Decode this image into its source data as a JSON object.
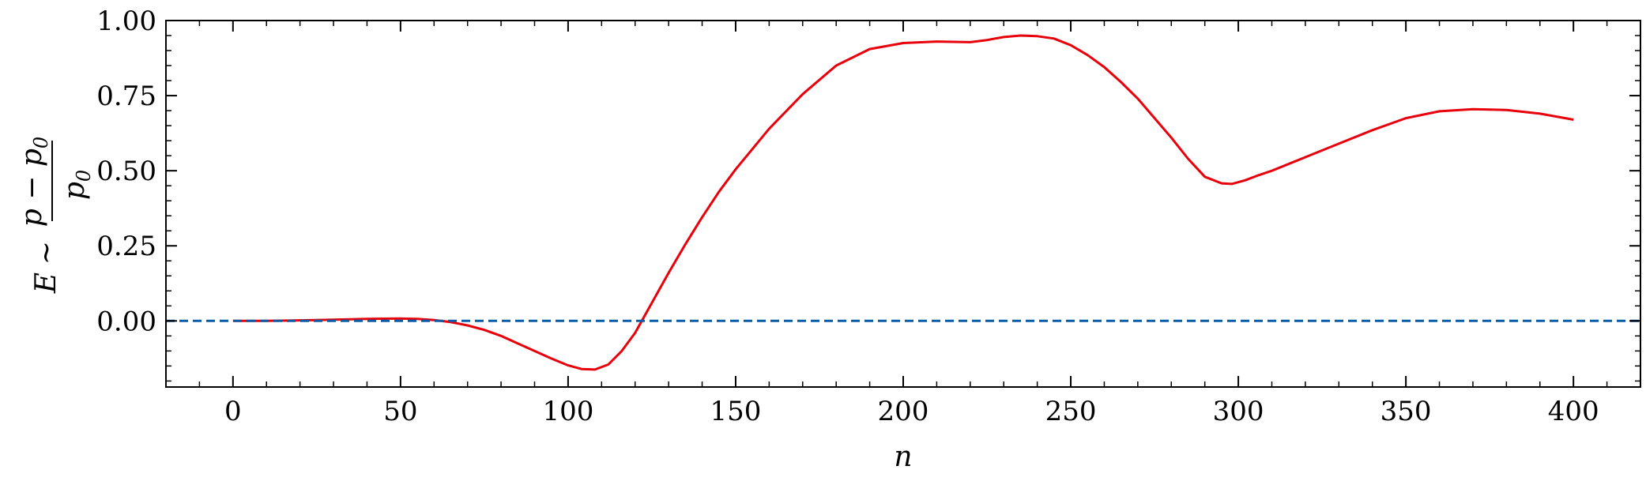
{
  "chart_data": {
    "type": "line",
    "title": "",
    "xlabel": "n",
    "ylabel": {
      "prefix": "E",
      "relation": "∼",
      "numerator": "p − p",
      "numerator_sub": "0",
      "denominator": "p",
      "denominator_sub": "0"
    },
    "xlim": [
      -20,
      420
    ],
    "ylim": [
      -0.22,
      1.0
    ],
    "xticks": [
      0,
      50,
      100,
      150,
      200,
      250,
      300,
      350,
      400
    ],
    "xtick_labels": [
      "0",
      "50",
      "100",
      "150",
      "200",
      "250",
      "300",
      "350",
      "400"
    ],
    "yticks": [
      0.0,
      0.25,
      0.5,
      0.75,
      1.0
    ],
    "ytick_labels": [
      "0.00",
      "0.25",
      "0.50",
      "0.75",
      "1.00"
    ],
    "grid": false,
    "series": [
      {
        "color": "#e8000b",
        "style": "solid",
        "x": [
          0,
          10,
          20,
          30,
          40,
          50,
          55,
          60,
          65,
          70,
          75,
          80,
          85,
          90,
          95,
          100,
          104,
          108,
          112,
          116,
          120,
          125,
          130,
          135,
          140,
          145,
          150,
          160,
          170,
          180,
          190,
          200,
          210,
          220,
          225,
          230,
          235,
          240,
          245,
          250,
          255,
          260,
          265,
          270,
          275,
          280,
          285,
          290,
          295,
          298,
          302,
          306,
          310,
          320,
          330,
          340,
          350,
          360,
          370,
          380,
          390,
          400
        ],
        "y": [
          0.0,
          0.0,
          0.002,
          0.004,
          0.007,
          0.008,
          0.007,
          0.003,
          -0.004,
          -0.015,
          -0.03,
          -0.05,
          -0.075,
          -0.1,
          -0.125,
          -0.148,
          -0.16,
          -0.162,
          -0.145,
          -0.1,
          -0.04,
          0.06,
          0.16,
          0.255,
          0.345,
          0.43,
          0.505,
          0.64,
          0.755,
          0.85,
          0.905,
          0.925,
          0.93,
          0.928,
          0.935,
          0.945,
          0.95,
          0.948,
          0.94,
          0.918,
          0.885,
          0.845,
          0.795,
          0.74,
          0.675,
          0.61,
          0.54,
          0.48,
          0.458,
          0.456,
          0.468,
          0.485,
          0.5,
          0.545,
          0.59,
          0.635,
          0.675,
          0.698,
          0.705,
          0.702,
          0.69,
          0.67
        ]
      },
      {
        "color": "#0c5da5",
        "style": "dashed",
        "x": [
          -20,
          420
        ],
        "y": [
          0,
          0
        ]
      }
    ]
  }
}
